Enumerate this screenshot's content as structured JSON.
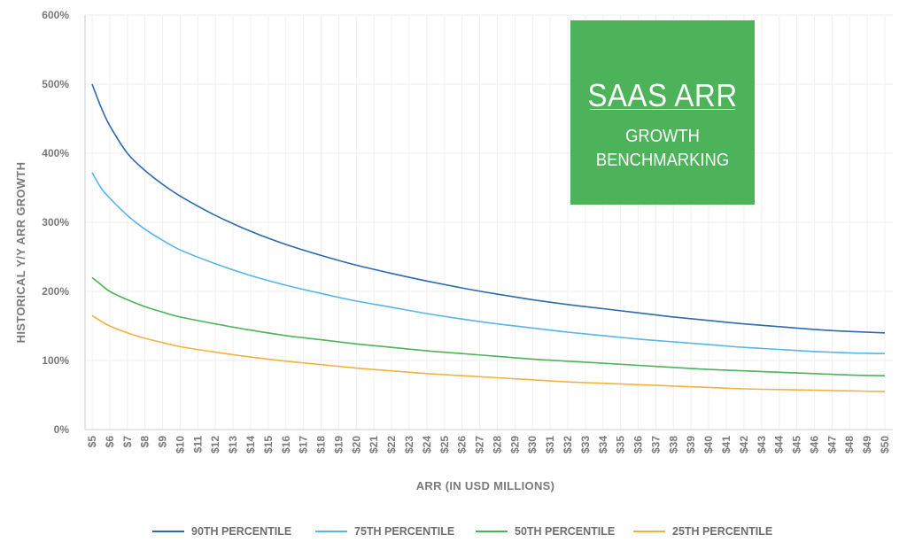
{
  "title_box": {
    "title": "SAAS ARR",
    "subtitle_line1": "GROWTH",
    "subtitle_line2": "BENCHMARKING",
    "color": "#4cb35a"
  },
  "chart_data": {
    "type": "line",
    "xlabel": "ARR (IN USD MILLIONS)",
    "ylabel": "HISTORICAL Y/Y ARR GROWTH",
    "x_categories": [
      "$5",
      "$6",
      "$7",
      "$8",
      "$9",
      "$10",
      "$11",
      "$12",
      "$13",
      "$14",
      "$15",
      "$16",
      "$17",
      "$18",
      "$19",
      "$20",
      "$21",
      "$22",
      "$23",
      "$24",
      "$25",
      "$26",
      "$27",
      "$28",
      "$29",
      "$30",
      "$31",
      "$32",
      "$33",
      "$34",
      "$35",
      "$36",
      "$37",
      "$38",
      "$39",
      "$40",
      "$41",
      "$42",
      "$43",
      "$44",
      "$45",
      "$46",
      "$47",
      "$48",
      "$49",
      "$50"
    ],
    "y_ticks": [
      "0%",
      "100%",
      "200%",
      "300%",
      "400%",
      "500%",
      "600%"
    ],
    "ylim": [
      0,
      600
    ],
    "xlim": [
      5,
      50
    ],
    "grid": true,
    "legend_position": "bottom",
    "series": [
      {
        "name": "90TH PERCENTILE",
        "color": "#2e6aad",
        "x": [
          5,
          5.5,
          6,
          7,
          8,
          9,
          10,
          12,
          14,
          16,
          18,
          20,
          22,
          24,
          26,
          28,
          30,
          32,
          34,
          36,
          38,
          40,
          42,
          44,
          46,
          48,
          50
        ],
        "y": [
          500,
          467,
          440,
          400,
          375,
          355,
          338,
          310,
          287,
          268,
          252,
          238,
          226,
          215,
          205,
          196,
          188,
          181,
          175,
          169,
          163,
          158,
          153,
          149,
          145,
          142,
          140
        ]
      },
      {
        "name": "75TH PERCENTILE",
        "color": "#56b6e8",
        "x": [
          5,
          5.5,
          6,
          7,
          8,
          9,
          10,
          12,
          14,
          16,
          18,
          20,
          22,
          24,
          26,
          28,
          30,
          32,
          34,
          36,
          38,
          40,
          42,
          44,
          46,
          48,
          50
        ],
        "y": [
          372,
          350,
          335,
          310,
          290,
          274,
          260,
          240,
          223,
          209,
          197,
          186,
          177,
          168,
          160,
          153,
          147,
          141,
          136,
          131,
          127,
          123,
          119,
          116,
          113,
          111,
          110
        ]
      },
      {
        "name": "50TH PERCENTILE",
        "color": "#4cb35a",
        "x": [
          5,
          5.5,
          6,
          7,
          8,
          9,
          10,
          12,
          14,
          16,
          18,
          20,
          22,
          24,
          26,
          28,
          30,
          32,
          34,
          36,
          38,
          40,
          42,
          44,
          46,
          48,
          50
        ],
        "y": [
          220,
          210,
          200,
          188,
          178,
          170,
          163,
          153,
          144,
          136,
          130,
          124,
          119,
          114,
          110,
          106,
          102,
          99,
          96,
          93,
          90,
          87,
          85,
          83,
          81,
          79,
          78
        ]
      },
      {
        "name": "25TH PERCENTILE",
        "color": "#f2b23f",
        "x": [
          5,
          5.5,
          6,
          7,
          8,
          9,
          10,
          12,
          14,
          16,
          18,
          20,
          22,
          24,
          26,
          28,
          30,
          32,
          34,
          36,
          38,
          40,
          42,
          44,
          46,
          48,
          50
        ],
        "y": [
          165,
          157,
          150,
          140,
          132,
          126,
          120,
          112,
          105,
          99,
          94,
          89,
          85,
          81,
          78,
          75,
          72,
          69,
          67,
          65,
          63,
          61,
          59,
          58,
          57,
          56,
          55
        ]
      }
    ]
  }
}
